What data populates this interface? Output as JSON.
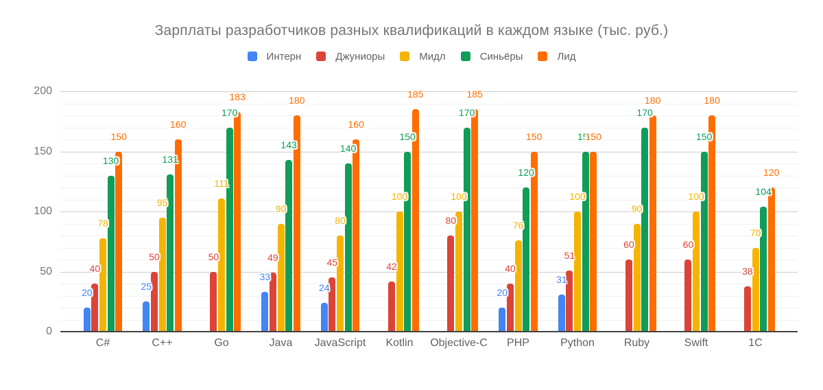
{
  "chart_data": {
    "type": "bar",
    "title": "Зарплаты разработчиков разных квалификаций в каждом языке (тыс. руб.)",
    "categories": [
      "C#",
      "C++",
      "Go",
      "Java",
      "JavaScript",
      "Kotlin",
      "Objective-C",
      "PHP",
      "Python",
      "Ruby",
      "Swift",
      "1C"
    ],
    "series": [
      {
        "name": "Интерн",
        "color": "#4285F4",
        "values": [
          20,
          25,
          null,
          33,
          24,
          null,
          null,
          20,
          31,
          null,
          null,
          null
        ]
      },
      {
        "name": "Джуниоры",
        "color": "#DB4437",
        "values": [
          40,
          50,
          50,
          49,
          45,
          42,
          80,
          40,
          51,
          60,
          60,
          38
        ]
      },
      {
        "name": "Мидл",
        "color": "#F4B400",
        "values": [
          78,
          95,
          111,
          90,
          80,
          100,
          100,
          76,
          100,
          90,
          100,
          70
        ]
      },
      {
        "name": "Синьёры",
        "color": "#0F9D58",
        "values": [
          130,
          131,
          170,
          143,
          140,
          150,
          170,
          120,
          150,
          170,
          150,
          104
        ]
      },
      {
        "name": "Лид",
        "color": "#FF6D00",
        "values": [
          150,
          160,
          183,
          180,
          160,
          185,
          185,
          150,
          150,
          180,
          180,
          120
        ]
      }
    ],
    "y_axis": {
      "ticks": [
        0,
        50,
        100,
        150,
        200
      ],
      "min": 0,
      "max": 200,
      "minor_step": 10
    },
    "x_axis": {
      "label": ""
    },
    "legend_position": "top",
    "grid": true,
    "data_labels": true
  },
  "colors": {
    "background": "#ffffff",
    "title_text": "#757575",
    "legend_text": "#616161",
    "y_tick_text": "#757575",
    "x_tick_text": "#616161",
    "major_grid": "#cccccc",
    "minor_grid": "#f0f0f0",
    "axis_line": "#424242"
  }
}
